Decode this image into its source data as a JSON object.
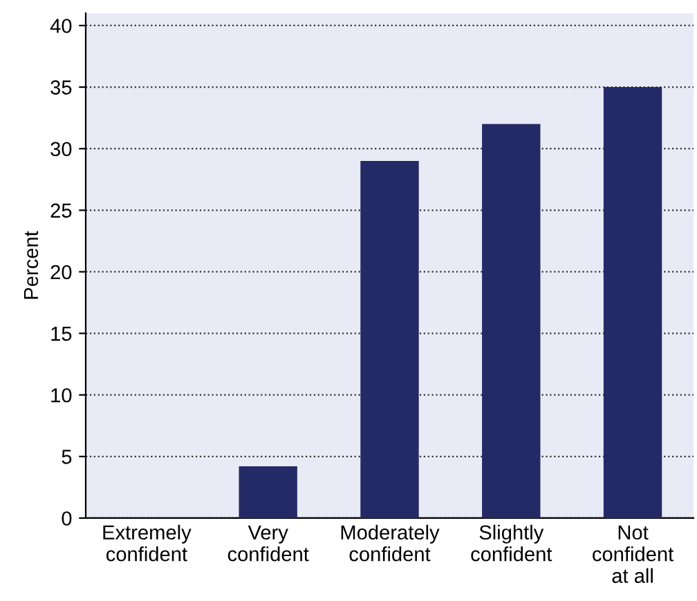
{
  "chart_data": {
    "type": "bar",
    "ylabel": "Percent",
    "categories": [
      "Extremely\nconfident",
      "Very\nconfident",
      "Moderately\nconfident",
      "Slightly\nconfident",
      "Not\nconfident\nat all"
    ],
    "values": [
      0,
      4.2,
      29,
      32,
      35
    ],
    "color": "#232a66",
    "ylim": [
      0,
      41
    ],
    "yticks": [
      0,
      5,
      10,
      15,
      20,
      25,
      30,
      35,
      40
    ],
    "grid": "y",
    "line_style": "dotted"
  }
}
